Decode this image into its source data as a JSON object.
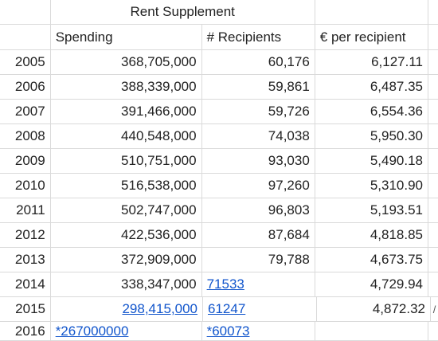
{
  "title": "Rent Supplement",
  "headers": {
    "spending": "Spending",
    "recipients": "# Recipients",
    "per_recipient": "€ per recipient"
  },
  "rows": [
    {
      "year": "2005",
      "spending": "368,705,000",
      "recipients": "60,176",
      "per_recipient": "6,127.11"
    },
    {
      "year": "2006",
      "spending": "388,339,000",
      "recipients": "59,861",
      "per_recipient": "6,487.35"
    },
    {
      "year": "2007",
      "spending": "391,466,000",
      "recipients": "59,726",
      "per_recipient": "6,554.36"
    },
    {
      "year": "2008",
      "spending": "440,548,000",
      "recipients": "74,038",
      "per_recipient": "5,950.30"
    },
    {
      "year": "2009",
      "spending": "510,751,000",
      "recipients": "93,030",
      "per_recipient": "5,490.18"
    },
    {
      "year": "2010",
      "spending": "516,538,000",
      "recipients": "97,260",
      "per_recipient": "5,310.90"
    },
    {
      "year": "2011",
      "spending": "502,747,000",
      "recipients": "96,803",
      "per_recipient": "5,193.51"
    },
    {
      "year": "2012",
      "spending": "422,536,000",
      "recipients": "87,684",
      "per_recipient": "4,818.85"
    },
    {
      "year": "2013",
      "spending": "372,909,000",
      "recipients": "79,788",
      "per_recipient": "4,673.75"
    },
    {
      "year": "2014",
      "spending": "338,347,000",
      "recipients": "71533",
      "per_recipient": "4,729.94"
    },
    {
      "year": "2015",
      "spending": "298,415,000",
      "recipients": "61247",
      "per_recipient": "4,872.32"
    },
    {
      "year": "2016",
      "spending": "*267000000",
      "recipients": "*60073",
      "per_recipient": ""
    }
  ],
  "edge_glyph": "/"
}
